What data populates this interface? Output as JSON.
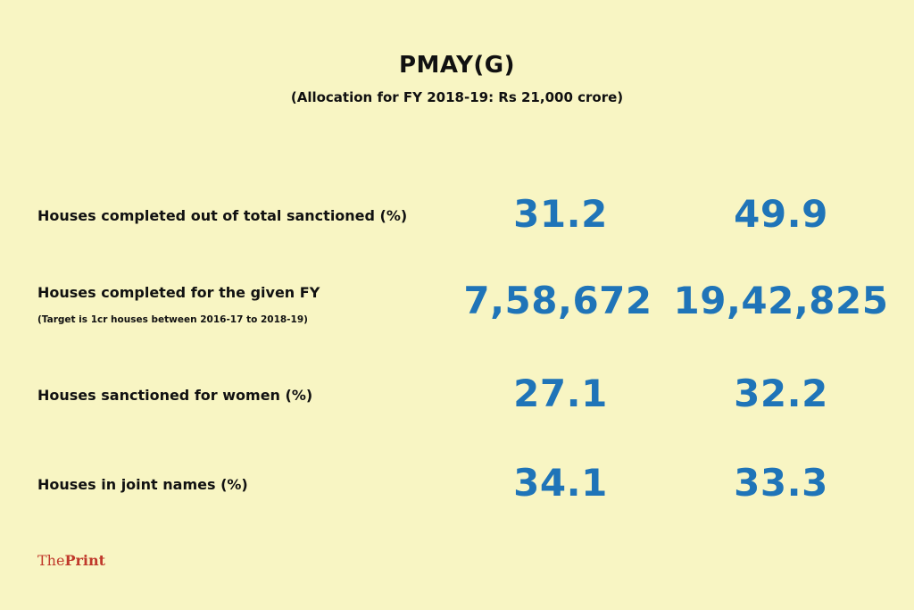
{
  "title": "PMAY(G)",
  "subtitle": "(Allocation for FY 2018-19: Rs 21,000 crore)",
  "rows": [
    {
      "label": "Houses completed out of total sanctioned (%)",
      "note": "",
      "value1": "31.2",
      "value2": "49.9"
    },
    {
      "label": "Houses completed for the given FY",
      "note": "(Target is 1cr houses between 2016-17 to 2018-19)",
      "value1": "7,58,672",
      "value2": "19,42,825"
    },
    {
      "label": "Houses sanctioned for women (%)",
      "note": "",
      "value1": "27.1",
      "value2": "32.2"
    },
    {
      "label": "Houses in joint names (%)",
      "note": "",
      "value1": "34.1",
      "value2": "33.3"
    }
  ],
  "logo": {
    "prefix": "The",
    "name": "Print"
  },
  "colors": {
    "background": "#f8f5c3",
    "value": "#1f74b8",
    "logo": "#c0392b",
    "text": "#111111"
  }
}
